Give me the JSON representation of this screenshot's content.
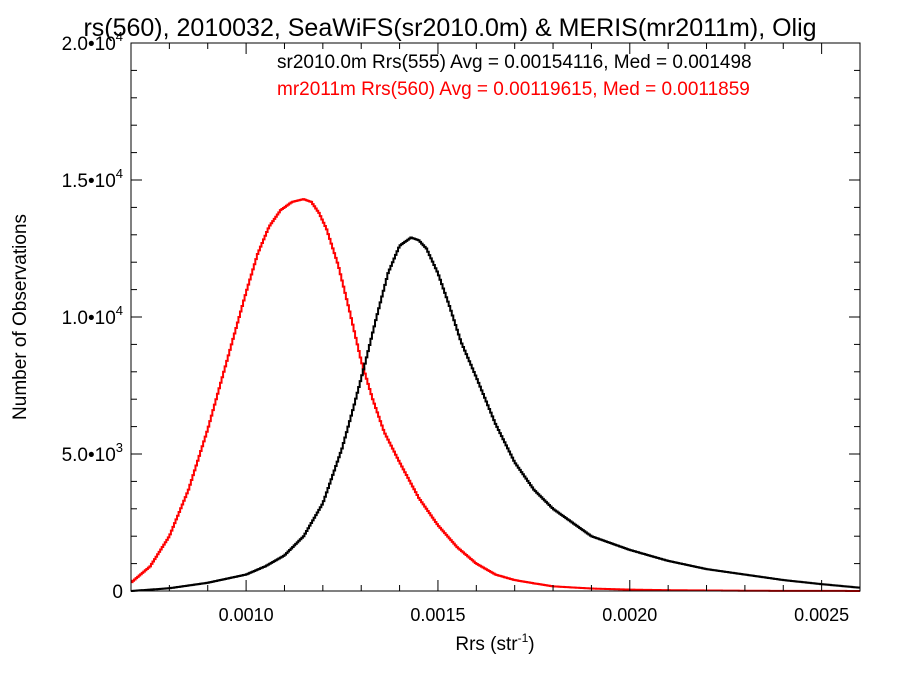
{
  "chart_data": {
    "type": "step-histogram",
    "title": "rs(560), 2010032, SeaWiFS(sr2010.0m) & MERIS(mr2011m), Olig",
    "xlabel": "Rrs (str⁻¹)",
    "ylabel": "Number of Observations",
    "xlim": [
      0.0007,
      0.0026
    ],
    "ylim": [
      0,
      20000
    ],
    "x_ticks": [
      {
        "value": 0.001,
        "label": "0.0010"
      },
      {
        "value": 0.0015,
        "label": "0.0015"
      },
      {
        "value": 0.002,
        "label": "0.0020"
      },
      {
        "value": 0.0025,
        "label": "0.0025"
      }
    ],
    "x_minor_step": 0.0001,
    "y_ticks": [
      {
        "value": 0,
        "mantissa": "0",
        "exponent": ""
      },
      {
        "value": 5000,
        "mantissa": "5.0•10",
        "exponent": "3"
      },
      {
        "value": 10000,
        "mantissa": "1.0•10",
        "exponent": "4"
      },
      {
        "value": 15000,
        "mantissa": "1.5•10",
        "exponent": "4"
      },
      {
        "value": 20000,
        "mantissa": "2.0•10",
        "exponent": "4"
      }
    ],
    "y_minor_step": 1000,
    "legend_placement": "top-right",
    "annotations": [
      {
        "text": "sr2010.0m Rrs(555) Avg = 0.00154116, Med = 0.001498",
        "color": "#000000"
      },
      {
        "text": "mr2011m Rrs(560) Avg = 0.00119615, Med = 0.0011859",
        "color": "#ff0000"
      }
    ],
    "series": [
      {
        "color": "#ff0000",
        "x": [
          0.0007,
          0.00075,
          0.0008,
          0.00085,
          0.0009,
          0.00095,
          0.001,
          0.00103,
          0.00106,
          0.00109,
          0.00112,
          0.00115,
          0.00117,
          0.00119,
          0.00121,
          0.00124,
          0.00127,
          0.0013,
          0.00133,
          0.00136,
          0.0014,
          0.00145,
          0.0015,
          0.00155,
          0.0016,
          0.00165,
          0.0017,
          0.00175,
          0.0018,
          0.0019,
          0.002,
          0.0021,
          0.0022,
          0.0023,
          0.0024,
          0.0025,
          0.0026
        ],
        "y": [
          300,
          900,
          2000,
          3700,
          5900,
          8400,
          10900,
          12300,
          13300,
          13900,
          14200,
          14300,
          14200,
          13800,
          13200,
          11900,
          10200,
          8400,
          7000,
          5800,
          4700,
          3400,
          2400,
          1600,
          1000,
          600,
          400,
          280,
          170,
          90,
          50,
          30,
          20,
          10,
          5,
          3,
          2
        ]
      },
      {
        "color": "#000000",
        "x": [
          0.0007,
          0.0008,
          0.0009,
          0.001,
          0.00105,
          0.0011,
          0.00115,
          0.0012,
          0.00125,
          0.00128,
          0.00131,
          0.00134,
          0.00137,
          0.0014,
          0.00143,
          0.00145,
          0.00147,
          0.0015,
          0.00153,
          0.00156,
          0.0016,
          0.00165,
          0.0017,
          0.00175,
          0.0018,
          0.00185,
          0.0019,
          0.002,
          0.0021,
          0.0022,
          0.0023,
          0.0024,
          0.0025,
          0.0026
        ],
        "y": [
          0,
          100,
          300,
          600,
          900,
          1300,
          2000,
          3200,
          5200,
          6700,
          8300,
          10000,
          11600,
          12600,
          12900,
          12800,
          12500,
          11600,
          10400,
          9100,
          7800,
          6100,
          4700,
          3700,
          3000,
          2500,
          2000,
          1500,
          1100,
          800,
          600,
          400,
          250,
          120
        ]
      }
    ]
  }
}
